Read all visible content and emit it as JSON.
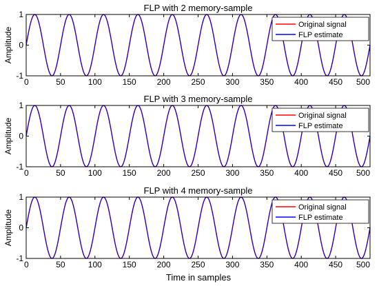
{
  "figure": {
    "xlabel": "Time in samples"
  },
  "chart_data": [
    {
      "type": "line",
      "title": "FLP with 2 memory-sample",
      "xlabel": "",
      "ylabel": "Amplitude",
      "xlim": [
        0,
        500
      ],
      "ylim": [
        -1,
        1
      ],
      "xticks": [
        0,
        50,
        100,
        150,
        200,
        250,
        300,
        350,
        400,
        450,
        500
      ],
      "yticks": [
        -1,
        0,
        1
      ],
      "grid": false,
      "legend_position": "top-right",
      "signal": {
        "form": "sine",
        "period_samples": 50,
        "amplitude": 1,
        "x_start": 0,
        "x_end": 500
      },
      "series": [
        {
          "name": "Original signal",
          "color": "#ff0000"
        },
        {
          "name": "FLP estimate",
          "color": "#0000ff"
        }
      ]
    },
    {
      "type": "line",
      "title": "FLP with 3 memory-sample",
      "xlabel": "",
      "ylabel": "Amplitude",
      "xlim": [
        0,
        500
      ],
      "ylim": [
        -1,
        1
      ],
      "xticks": [
        0,
        50,
        100,
        150,
        200,
        250,
        300,
        350,
        400,
        450,
        500
      ],
      "yticks": [
        -1,
        0,
        1
      ],
      "grid": false,
      "legend_position": "top-right",
      "signal": {
        "form": "sine",
        "period_samples": 50,
        "amplitude": 1,
        "x_start": 0,
        "x_end": 500
      },
      "series": [
        {
          "name": "Original signal",
          "color": "#ff0000"
        },
        {
          "name": "FLP estimate",
          "color": "#0000ff"
        }
      ]
    },
    {
      "type": "line",
      "title": "FLP with 4 memory-sample",
      "xlabel": "Time in samples",
      "ylabel": "Amplitude",
      "xlim": [
        0,
        500
      ],
      "ylim": [
        -1,
        1
      ],
      "xticks": [
        0,
        50,
        100,
        150,
        200,
        250,
        300,
        350,
        400,
        450,
        500
      ],
      "yticks": [
        -1,
        0,
        1
      ],
      "grid": false,
      "legend_position": "top-right",
      "signal": {
        "form": "sine",
        "period_samples": 50,
        "amplitude": 1,
        "x_start": 0,
        "x_end": 500
      },
      "series": [
        {
          "name": "Original signal",
          "color": "#ff0000"
        },
        {
          "name": "FLP estimate",
          "color": "#0000ff"
        }
      ]
    }
  ]
}
